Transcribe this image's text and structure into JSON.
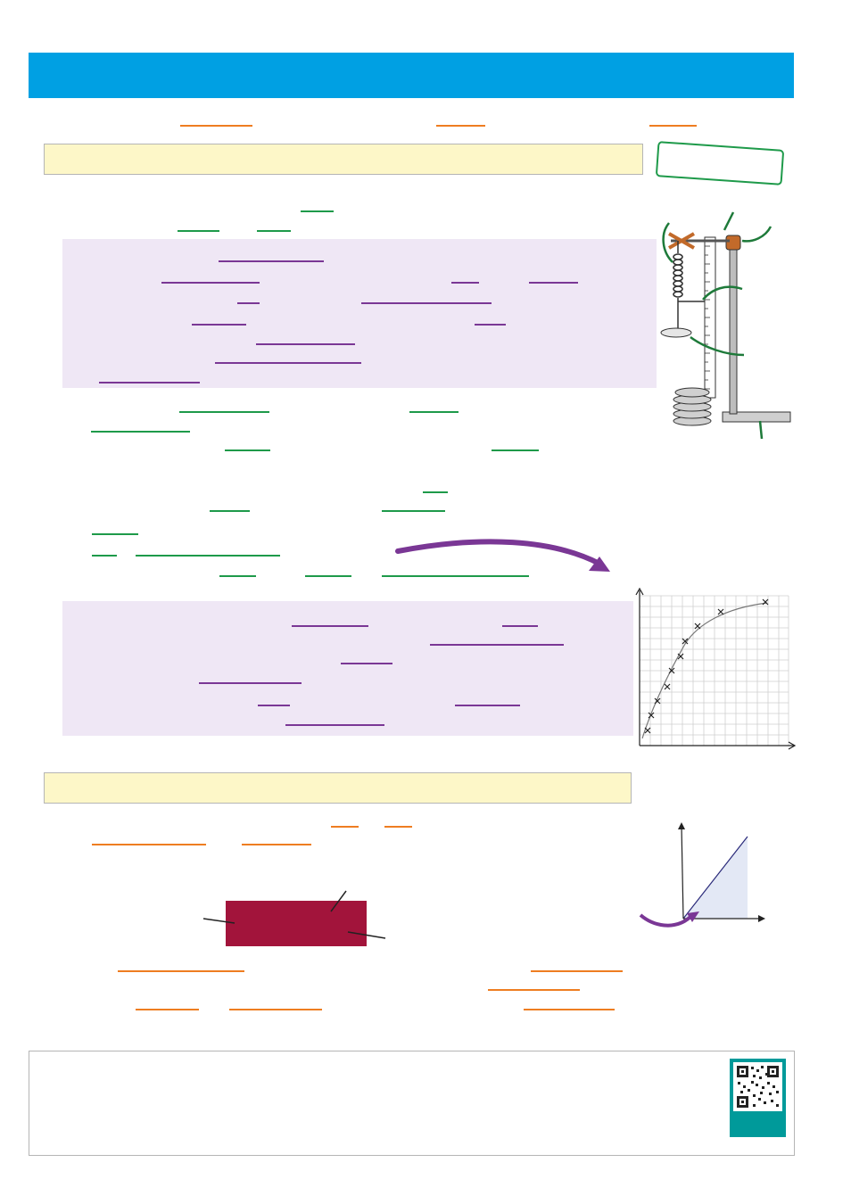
{
  "colors": {
    "header": "#00a0e3",
    "section_box": "#fdf7c8",
    "purple_panel": "#efe7f5",
    "underline_orange": "#ee7d21",
    "underline_green": "#1e9a4a",
    "underline_purple": "#7a3795",
    "block_red": "#a2143b",
    "qr_frame": "#009a9a"
  },
  "icons": {
    "apparatus": "spring-clamp-stand-diagram",
    "graph": "force-extension-graph-icon",
    "triangle_graph": "area-under-graph-icon",
    "qr": "qr-code-icon"
  }
}
